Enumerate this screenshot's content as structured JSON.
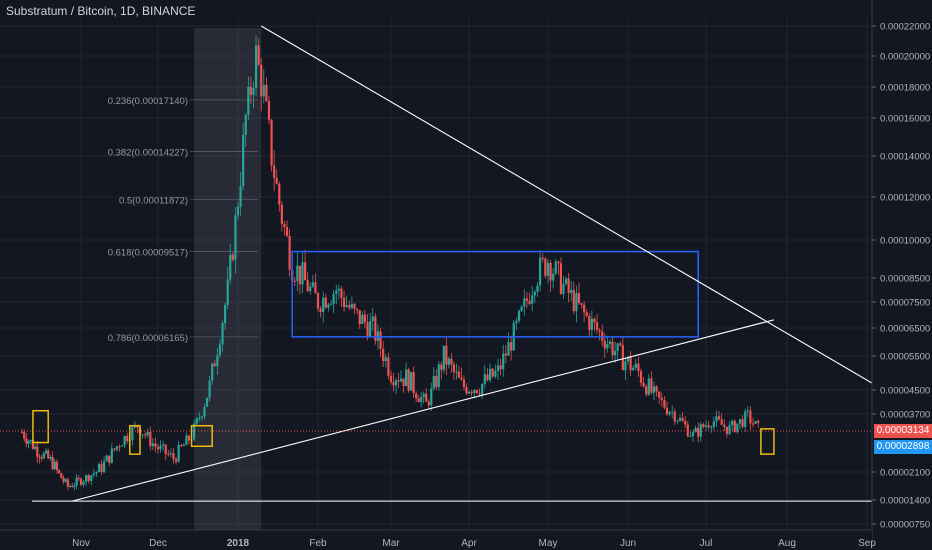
{
  "header": {
    "title": "Substratum / Bitcoin, 1D, BINANCE"
  },
  "colors": {
    "background": "#131722",
    "grid": "#1f2433",
    "axis_text": "#b2b5be",
    "up_candle": "#26a69a",
    "down_candle": "#ef5350",
    "rectangle": "#2962ff",
    "highlight_box": "#f0b90b",
    "trendline": "#ffffff",
    "last_price_tag": "#ef5350",
    "alt_price_tag": "#2196f3"
  },
  "price_tags": [
    {
      "label": "0.00003134",
      "value": 3.134e-05,
      "color": "#ef5350"
    },
    {
      "label": "0.00002898",
      "value": 2.898e-05,
      "color": "#2196f3"
    }
  ],
  "fibonacci_levels": [
    {
      "label": "0.236(0.00017140)",
      "price": 0.0001714
    },
    {
      "label": "0.382(0.00014227)",
      "price": 0.00014227
    },
    {
      "label": "0.5(0.00011872)",
      "price": 0.00011872
    },
    {
      "label": "0.618(0.00009517)",
      "price": 9.517e-05
    },
    {
      "label": "0.786(0.00006165)",
      "price": 6.165e-05
    }
  ],
  "chart_data": {
    "type": "candlestick",
    "title": "Substratum / Bitcoin, 1D, BINANCE",
    "y_scale": "log",
    "ylim": [
      7.5e-06,
      0.00022
    ],
    "y_ticks": [
      "0.00022000",
      "0.00020000",
      "0.00018000",
      "0.00016000",
      "0.00014000",
      "0.00012000",
      "0.00010000",
      "0.00008500",
      "0.00007500",
      "0.00006500",
      "0.00005500",
      "0.00004500",
      "0.00003700",
      "0.00002100",
      "0.00001400",
      "0.00000750"
    ],
    "x_ticks": [
      "Nov",
      "Dec",
      "2018",
      "Feb",
      "Mar",
      "Apr",
      "May",
      "Jun",
      "Jul",
      "Aug",
      "Sep"
    ],
    "grid": true,
    "series": [
      {
        "name": "",
        "x": [
          "2017-10-05",
          "2017-10-12",
          "2017-10-19",
          "2017-10-26",
          "2017-11-02",
          "2017-11-09",
          "2017-11-16",
          "2017-11-23",
          "2017-11-30",
          "2017-12-07",
          "2017-12-14",
          "2017-12-21",
          "2017-12-28",
          "2018-01-04",
          "2018-01-08",
          "2018-01-11",
          "2018-01-14",
          "2018-01-18",
          "2018-01-22",
          "2018-01-26",
          "2018-02-01",
          "2018-02-08",
          "2018-02-15",
          "2018-02-22",
          "2018-03-01",
          "2018-03-08",
          "2018-03-15",
          "2018-03-22",
          "2018-03-29",
          "2018-04-05",
          "2018-04-12",
          "2018-04-19",
          "2018-04-26",
          "2018-05-01",
          "2018-05-08",
          "2018-05-15",
          "2018-05-22",
          "2018-05-29",
          "2018-06-05",
          "2018-06-12",
          "2018-06-19",
          "2018-06-26",
          "2018-07-03",
          "2018-07-10",
          "2018-07-17",
          "2018-07-21"
        ],
        "close": [
          3.1e-05,
          2.6e-05,
          2.3e-05,
          1.7e-05,
          1.9e-05,
          2.2e-05,
          2.8e-05,
          3.3e-05,
          2.7e-05,
          2.4e-05,
          3e-05,
          4.6e-05,
          8e-05,
          0.00016,
          0.0002,
          0.000175,
          0.00014,
          0.00011,
          9e-05,
          8.5e-05,
          7.5e-05,
          8e-05,
          7e-05,
          6.5e-05,
          5e-05,
          4.8e-05,
          4e-05,
          5.5e-05,
          4.6e-05,
          4.6e-05,
          5e-05,
          6.5e-05,
          8.5e-05,
          9.2e-05,
          8e-05,
          7e-05,
          6.2e-05,
          5.5e-05,
          5e-05,
          4.2e-05,
          3.7e-05,
          3e-05,
          3.5e-05,
          3.2e-05,
          3.6e-05,
          3.2e-05
        ]
      }
    ],
    "annotations": {
      "blue_rectangle": {
        "x": [
          "2018-01-22",
          "2018-06-28"
        ],
        "y": [
          6.165e-05,
          9.517e-05
        ]
      },
      "trendlines": [
        {
          "x": [
            "2018-01-10",
            "2018-09-30"
          ],
          "y": [
            0.00022,
            3.3e-05
          ]
        },
        {
          "x": [
            "2017-10-28",
            "2018-07-27"
          ],
          "y": [
            1.36e-05,
            6.8e-05
          ]
        }
      ],
      "support_line": {
        "x": [
          "2017-10-05",
          "2018-09-30"
        ],
        "y": [
          1.36e-05,
          1.36e-05
        ]
      },
      "highlight_boxes": [
        {
          "x": [
            "2017-10-10",
            "2017-10-17"
          ],
          "y": [
            2.8e-05,
            3.8e-05
          ]
        },
        {
          "x": [
            "2017-11-20",
            "2017-11-24"
          ],
          "y": [
            2.5e-05,
            3.3e-05
          ]
        },
        {
          "x": [
            "2017-12-14",
            "2017-12-22"
          ],
          "y": [
            2.7e-05,
            3.3e-05
          ]
        },
        {
          "x": [
            "2018-07-22",
            "2018-07-27"
          ],
          "y": [
            2.5e-05,
            3.2e-05
          ]
        }
      ]
    }
  }
}
